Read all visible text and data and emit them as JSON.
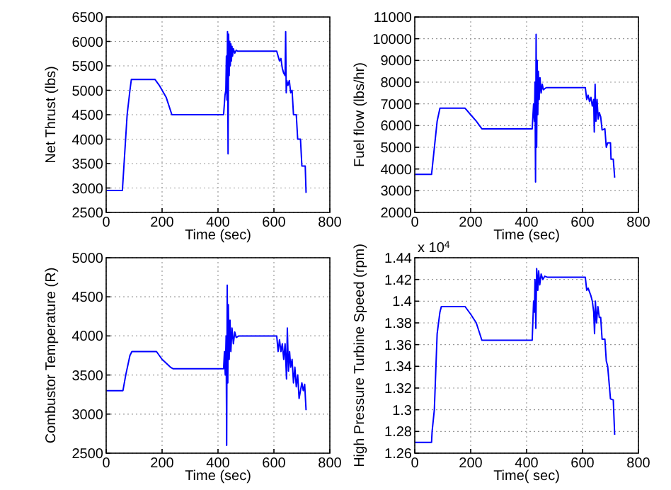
{
  "chart_data": [
    {
      "type": "line",
      "xlabel": "Time (sec)",
      "ylabel": "Net Thrust (lbs)",
      "color": "#0000ff",
      "grid": true,
      "xlim": [
        0,
        800
      ],
      "xticks": [
        0,
        200,
        400,
        600,
        800
      ],
      "ylim": [
        2500,
        6500
      ],
      "yticks": [
        2500,
        3000,
        3500,
        4000,
        4500,
        5000,
        5500,
        6000,
        6500
      ],
      "x": [
        1,
        58,
        75,
        85,
        90,
        175,
        190,
        215,
        235,
        420,
        425,
        428,
        430,
        432,
        434,
        436,
        438,
        440,
        442,
        444,
        446,
        448,
        450,
        452,
        455,
        460,
        465,
        470,
        610,
        615,
        620,
        625,
        630,
        635,
        640,
        642,
        644,
        646,
        650,
        655,
        660,
        665,
        670,
        680,
        685,
        695,
        700,
        712,
        715
      ],
      "values": [
        2950,
        2950,
        4500,
        5000,
        5220,
        5220,
        5100,
        4850,
        4500,
        4500,
        4900,
        5000,
        5700,
        4800,
        6200,
        3700,
        6150,
        5300,
        6000,
        5500,
        5950,
        5600,
        5900,
        5700,
        5850,
        5760,
        5820,
        5800,
        5800,
        5700,
        5600,
        5650,
        5450,
        5350,
        5300,
        6200,
        4950,
        5200,
        5100,
        5200,
        4950,
        5000,
        4500,
        4500,
        4000,
        4000,
        3450,
        3450,
        2900
      ]
    },
    {
      "type": "line",
      "xlabel": "Time (sec)",
      "ylabel": "Fuel flow (lbs/hr)",
      "color": "#0000ff",
      "grid": true,
      "xlim": [
        0,
        800
      ],
      "xticks": [
        0,
        200,
        400,
        600,
        800
      ],
      "ylim": [
        2000,
        11000
      ],
      "yticks": [
        2000,
        3000,
        4000,
        5000,
        6000,
        7000,
        8000,
        9000,
        10000,
        11000
      ],
      "x": [
        1,
        60,
        80,
        90,
        180,
        200,
        220,
        240,
        420,
        425,
        428,
        430,
        432,
        434,
        436,
        438,
        440,
        442,
        445,
        448,
        452,
        456,
        460,
        470,
        610,
        615,
        620,
        625,
        630,
        635,
        640,
        642,
        645,
        648,
        652,
        656,
        660,
        665,
        670,
        680,
        685,
        690,
        700,
        702,
        710,
        715
      ],
      "values": [
        3750,
        3750,
        6200,
        6800,
        6800,
        6500,
        6200,
        5850,
        5850,
        7000,
        6200,
        8000,
        3400,
        10200,
        5000,
        9000,
        6500,
        8500,
        7200,
        8200,
        7500,
        7900,
        7650,
        7750,
        7750,
        7200,
        7400,
        7100,
        7300,
        6900,
        7200,
        5700,
        7900,
        6200,
        7200,
        6300,
        6600,
        6400,
        5800,
        5850,
        5000,
        5200,
        5200,
        4450,
        4450,
        3600
      ]
    },
    {
      "type": "line",
      "xlabel": "Time (sec)",
      "ylabel": "Combustor Temperature (R)",
      "color": "#0000ff",
      "grid": true,
      "xlim": [
        0,
        800
      ],
      "xticks": [
        0,
        200,
        400,
        600,
        800
      ],
      "ylim": [
        2500,
        5000
      ],
      "yticks": [
        2500,
        3000,
        3500,
        4000,
        4500,
        5000
      ],
      "x": [
        1,
        60,
        70,
        85,
        92,
        180,
        200,
        230,
        240,
        420,
        423,
        426,
        429,
        431,
        433,
        435,
        437,
        440,
        443,
        446,
        450,
        455,
        460,
        465,
        475,
        610,
        615,
        620,
        625,
        630,
        635,
        640,
        645,
        648,
        652,
        656,
        660,
        665,
        670,
        675,
        680,
        685,
        690,
        700,
        705,
        710,
        715
      ],
      "values": [
        3300,
        3300,
        3500,
        3750,
        3800,
        3800,
        3700,
        3600,
        3580,
        3580,
        3800,
        3500,
        4000,
        2600,
        4650,
        3400,
        4400,
        3700,
        4200,
        3800,
        4100,
        3900,
        4050,
        3980,
        4000,
        4000,
        3800,
        3950,
        3800,
        3900,
        3700,
        3900,
        3450,
        4100,
        3550,
        3800,
        3600,
        3700,
        3400,
        3600,
        3350,
        3500,
        3200,
        3400,
        3300,
        3380,
        3050
      ]
    },
    {
      "type": "line",
      "xlabel": "Time( sec)",
      "ylabel": "High Pressure Turbine Speed (rpm)",
      "color": "#0000ff",
      "grid": true,
      "xlim": [
        0,
        800
      ],
      "xticks": [
        0,
        200,
        400,
        600,
        800
      ],
      "ylim": [
        1.26,
        1.44
      ],
      "yticks": [
        1.26,
        1.28,
        1.3,
        1.32,
        1.34,
        1.36,
        1.38,
        1.4,
        1.42,
        1.44
      ],
      "annotations": [
        "x 10$^{4}$"
      ],
      "x": [
        0,
        60,
        62,
        70,
        80,
        90,
        95,
        180,
        200,
        220,
        240,
        420,
        425,
        428,
        430,
        433,
        436,
        440,
        443,
        447,
        452,
        458,
        465,
        475,
        610,
        615,
        620,
        630,
        635,
        640,
        643,
        646,
        650,
        655,
        660,
        665,
        670,
        680,
        685,
        690,
        700,
        710,
        715
      ],
      "values": [
        1.27,
        1.27,
        1.28,
        1.3,
        1.37,
        1.39,
        1.395,
        1.395,
        1.388,
        1.38,
        1.364,
        1.364,
        1.4,
        1.39,
        1.42,
        1.375,
        1.43,
        1.41,
        1.428,
        1.415,
        1.425,
        1.42,
        1.423,
        1.422,
        1.422,
        1.41,
        1.412,
        1.405,
        1.4,
        1.39,
        1.37,
        1.4,
        1.38,
        1.395,
        1.385,
        1.385,
        1.365,
        1.365,
        1.345,
        1.34,
        1.31,
        1.309,
        1.277
      ]
    }
  ]
}
